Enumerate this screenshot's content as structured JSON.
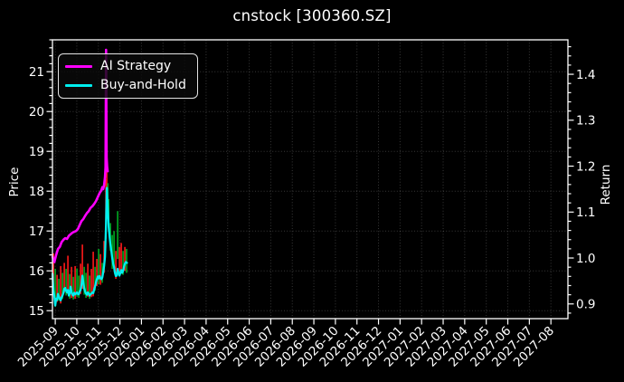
{
  "chart_data": {
    "type": "line",
    "title": "cnstock [300360.SZ]",
    "grid": true,
    "legend_position": "upper-left",
    "left_axis": {
      "label": "Price",
      "ticks": [
        15,
        16,
        17,
        18,
        19,
        20,
        21
      ],
      "range": [
        14.8,
        21.8
      ]
    },
    "right_axis": {
      "label": "Return",
      "ticks": [
        0.9,
        1.0,
        1.1,
        1.2,
        1.3,
        1.4
      ],
      "range": [
        0.868,
        1.475
      ]
    },
    "x_axis": {
      "tick_labels": [
        "2025-09",
        "2025-10",
        "2025-11",
        "2025-12",
        "2026-01",
        "2026-02",
        "2026-03",
        "2026-04",
        "2026-05",
        "2026-06",
        "2026-07",
        "2026-08",
        "2026-09",
        "2026-10",
        "2026-11",
        "2026-12",
        "2027-01",
        "2027-02",
        "2027-03",
        "2027-04",
        "2027-05",
        "2027-06",
        "2027-07",
        "2027-08"
      ],
      "range_months": [
        -0.13,
        23.79
      ],
      "label_rotation_deg": 45
    },
    "series": [
      {
        "name": "AI Strategy",
        "color": "#ff00ff",
        "width": 2.6,
        "points": [
          [
            -0.126,
            16.35
          ],
          [
            -0.042,
            16.22
          ],
          [
            0.042,
            16.4
          ],
          [
            0.126,
            16.55
          ],
          [
            0.21,
            16.6
          ],
          [
            0.294,
            16.72
          ],
          [
            0.378,
            16.78
          ],
          [
            0.462,
            16.82
          ],
          [
            0.546,
            16.8
          ],
          [
            0.629,
            16.88
          ],
          [
            0.713,
            16.92
          ],
          [
            0.797,
            16.96
          ],
          [
            0.881,
            16.98
          ],
          [
            0.965,
            17.0
          ],
          [
            1.049,
            17.05
          ],
          [
            1.133,
            17.15
          ],
          [
            1.217,
            17.25
          ],
          [
            1.301,
            17.3
          ],
          [
            1.385,
            17.38
          ],
          [
            1.469,
            17.45
          ],
          [
            1.553,
            17.5
          ],
          [
            1.636,
            17.58
          ],
          [
            1.72,
            17.62
          ],
          [
            1.804,
            17.68
          ],
          [
            1.888,
            17.75
          ],
          [
            1.972,
            17.85
          ],
          [
            2.056,
            17.95
          ],
          [
            2.14,
            18.02
          ],
          [
            2.182,
            18.1
          ],
          [
            2.224,
            18.05
          ],
          [
            2.266,
            18.15
          ],
          [
            2.308,
            18.35
          ],
          [
            2.333,
            18.6
          ],
          [
            2.358,
            21.55
          ],
          [
            2.383,
            18.85
          ],
          [
            2.409,
            18.6
          ],
          [
            2.434,
            18.5
          ]
        ]
      },
      {
        "name": "Buy-and-Hold",
        "color": "#00efef",
        "width": 2.3,
        "points": [
          [
            -0.126,
            15.92
          ],
          [
            -0.084,
            15.5
          ],
          [
            -0.042,
            15.35
          ],
          [
            0.0,
            15.13
          ],
          [
            0.042,
            15.3
          ],
          [
            0.084,
            15.27
          ],
          [
            0.126,
            15.42
          ],
          [
            0.168,
            15.35
          ],
          [
            0.21,
            15.3
          ],
          [
            0.252,
            15.26
          ],
          [
            0.294,
            15.33
          ],
          [
            0.336,
            15.38
          ],
          [
            0.378,
            15.44
          ],
          [
            0.42,
            15.55
          ],
          [
            0.462,
            15.57
          ],
          [
            0.504,
            15.5
          ],
          [
            0.546,
            15.46
          ],
          [
            0.587,
            15.52
          ],
          [
            0.629,
            15.38
          ],
          [
            0.671,
            15.43
          ],
          [
            0.713,
            15.6
          ],
          [
            0.755,
            15.46
          ],
          [
            0.797,
            15.4
          ],
          [
            0.839,
            15.38
          ],
          [
            0.881,
            15.45
          ],
          [
            0.923,
            15.41
          ],
          [
            0.965,
            15.43
          ],
          [
            1.007,
            15.46
          ],
          [
            1.049,
            15.42
          ],
          [
            1.091,
            15.41
          ],
          [
            1.133,
            15.48
          ],
          [
            1.175,
            15.52
          ],
          [
            1.217,
            15.66
          ],
          [
            1.259,
            15.88
          ],
          [
            1.301,
            15.72
          ],
          [
            1.343,
            15.56
          ],
          [
            1.385,
            15.48
          ],
          [
            1.427,
            15.43
          ],
          [
            1.469,
            15.4
          ],
          [
            1.511,
            15.46
          ],
          [
            1.553,
            15.43
          ],
          [
            1.595,
            15.38
          ],
          [
            1.636,
            15.41
          ],
          [
            1.678,
            15.43
          ],
          [
            1.72,
            15.46
          ],
          [
            1.762,
            15.44
          ],
          [
            1.804,
            15.53
          ],
          [
            1.846,
            15.61
          ],
          [
            1.888,
            15.71
          ],
          [
            1.93,
            15.79
          ],
          [
            1.972,
            15.86
          ],
          [
            2.014,
            15.81
          ],
          [
            2.056,
            15.87
          ],
          [
            2.098,
            15.81
          ],
          [
            2.14,
            15.79
          ],
          [
            2.182,
            15.83
          ],
          [
            2.224,
            15.96
          ],
          [
            2.266,
            16.12
          ],
          [
            2.308,
            16.35
          ],
          [
            2.35,
            17.05
          ],
          [
            2.392,
            18.08
          ],
          [
            2.434,
            17.62
          ],
          [
            2.476,
            17.12
          ],
          [
            2.518,
            16.87
          ],
          [
            2.56,
            16.66
          ],
          [
            2.602,
            16.5
          ],
          [
            2.644,
            16.32
          ],
          [
            2.686,
            16.18
          ],
          [
            2.728,
            16.1
          ],
          [
            2.77,
            15.95
          ],
          [
            2.812,
            15.87
          ],
          [
            2.854,
            15.88
          ],
          [
            2.896,
            16.05
          ],
          [
            2.937,
            15.95
          ],
          [
            2.979,
            15.88
          ],
          [
            3.021,
            15.95
          ],
          [
            3.063,
            16.02
          ],
          [
            3.105,
            15.95
          ],
          [
            3.147,
            16.0
          ],
          [
            3.189,
            16.1
          ],
          [
            3.231,
            16.18
          ],
          [
            3.273,
            16.22
          ],
          [
            3.33,
            16.2
          ]
        ]
      }
    ],
    "price_bars": {
      "colors": {
        "r": "#ff1a1a",
        "g": "#00aa22"
      },
      "bars": [
        [
          -0.084,
          15.62,
          16.44,
          "r"
        ],
        [
          0.0,
          15.1,
          16.05,
          "g"
        ],
        [
          0.084,
          15.22,
          15.9,
          "r"
        ],
        [
          0.168,
          15.25,
          15.8,
          "g"
        ],
        [
          0.252,
          15.18,
          16.12,
          "r"
        ],
        [
          0.336,
          15.3,
          15.95,
          "g"
        ],
        [
          0.42,
          15.45,
          16.2,
          "r"
        ],
        [
          0.504,
          15.38,
          16.05,
          "g"
        ],
        [
          0.587,
          15.42,
          16.38,
          "r"
        ],
        [
          0.671,
          15.3,
          15.92,
          "g"
        ],
        [
          0.755,
          15.32,
          16.1,
          "r"
        ],
        [
          0.839,
          15.28,
          15.85,
          "g"
        ],
        [
          0.923,
          15.3,
          16.12,
          "r"
        ],
        [
          1.007,
          15.35,
          16.06,
          "g"
        ],
        [
          1.091,
          15.32,
          15.88,
          "g"
        ],
        [
          1.175,
          15.42,
          16.18,
          "r"
        ],
        [
          1.259,
          15.55,
          16.66,
          "r"
        ],
        [
          1.343,
          15.4,
          16.1,
          "g"
        ],
        [
          1.427,
          15.32,
          15.95,
          "g"
        ],
        [
          1.511,
          15.35,
          16.18,
          "r"
        ],
        [
          1.595,
          15.3,
          15.88,
          "g"
        ],
        [
          1.678,
          15.34,
          16.05,
          "r"
        ],
        [
          1.762,
          15.36,
          16.48,
          "r"
        ],
        [
          1.846,
          15.5,
          16.1,
          "g"
        ],
        [
          1.93,
          15.62,
          16.3,
          "r"
        ],
        [
          2.014,
          15.66,
          16.55,
          "g"
        ],
        [
          2.098,
          15.65,
          16.42,
          "r"
        ],
        [
          2.182,
          15.7,
          16.2,
          "g"
        ],
        [
          2.266,
          15.95,
          16.75,
          "r"
        ],
        [
          2.35,
          16.8,
          18.3,
          "r"
        ],
        [
          2.392,
          17.9,
          18.75,
          "r"
        ],
        [
          2.44,
          17.3,
          18.2,
          "g"
        ],
        [
          2.48,
          17.0,
          17.8,
          "g"
        ],
        [
          2.56,
          16.5,
          17.2,
          "g"
        ],
        [
          2.644,
          16.05,
          16.9,
          "g"
        ],
        [
          2.728,
          16.1,
          17.0,
          "g"
        ],
        [
          2.812,
          15.8,
          16.5,
          "r"
        ],
        [
          2.896,
          16.3,
          17.5,
          "g"
        ],
        [
          2.979,
          15.9,
          16.6,
          "r"
        ],
        [
          3.063,
          16.0,
          16.7,
          "r"
        ],
        [
          3.147,
          15.9,
          16.5,
          "g"
        ],
        [
          3.231,
          16.0,
          16.6,
          "r"
        ],
        [
          3.31,
          15.95,
          16.55,
          "g"
        ]
      ]
    },
    "style": {
      "background": "#000000",
      "text_color": "#ffffff",
      "grid_color": "#ffffff",
      "grid_opacity": 0.22,
      "spine_color": "#ffffff"
    }
  }
}
